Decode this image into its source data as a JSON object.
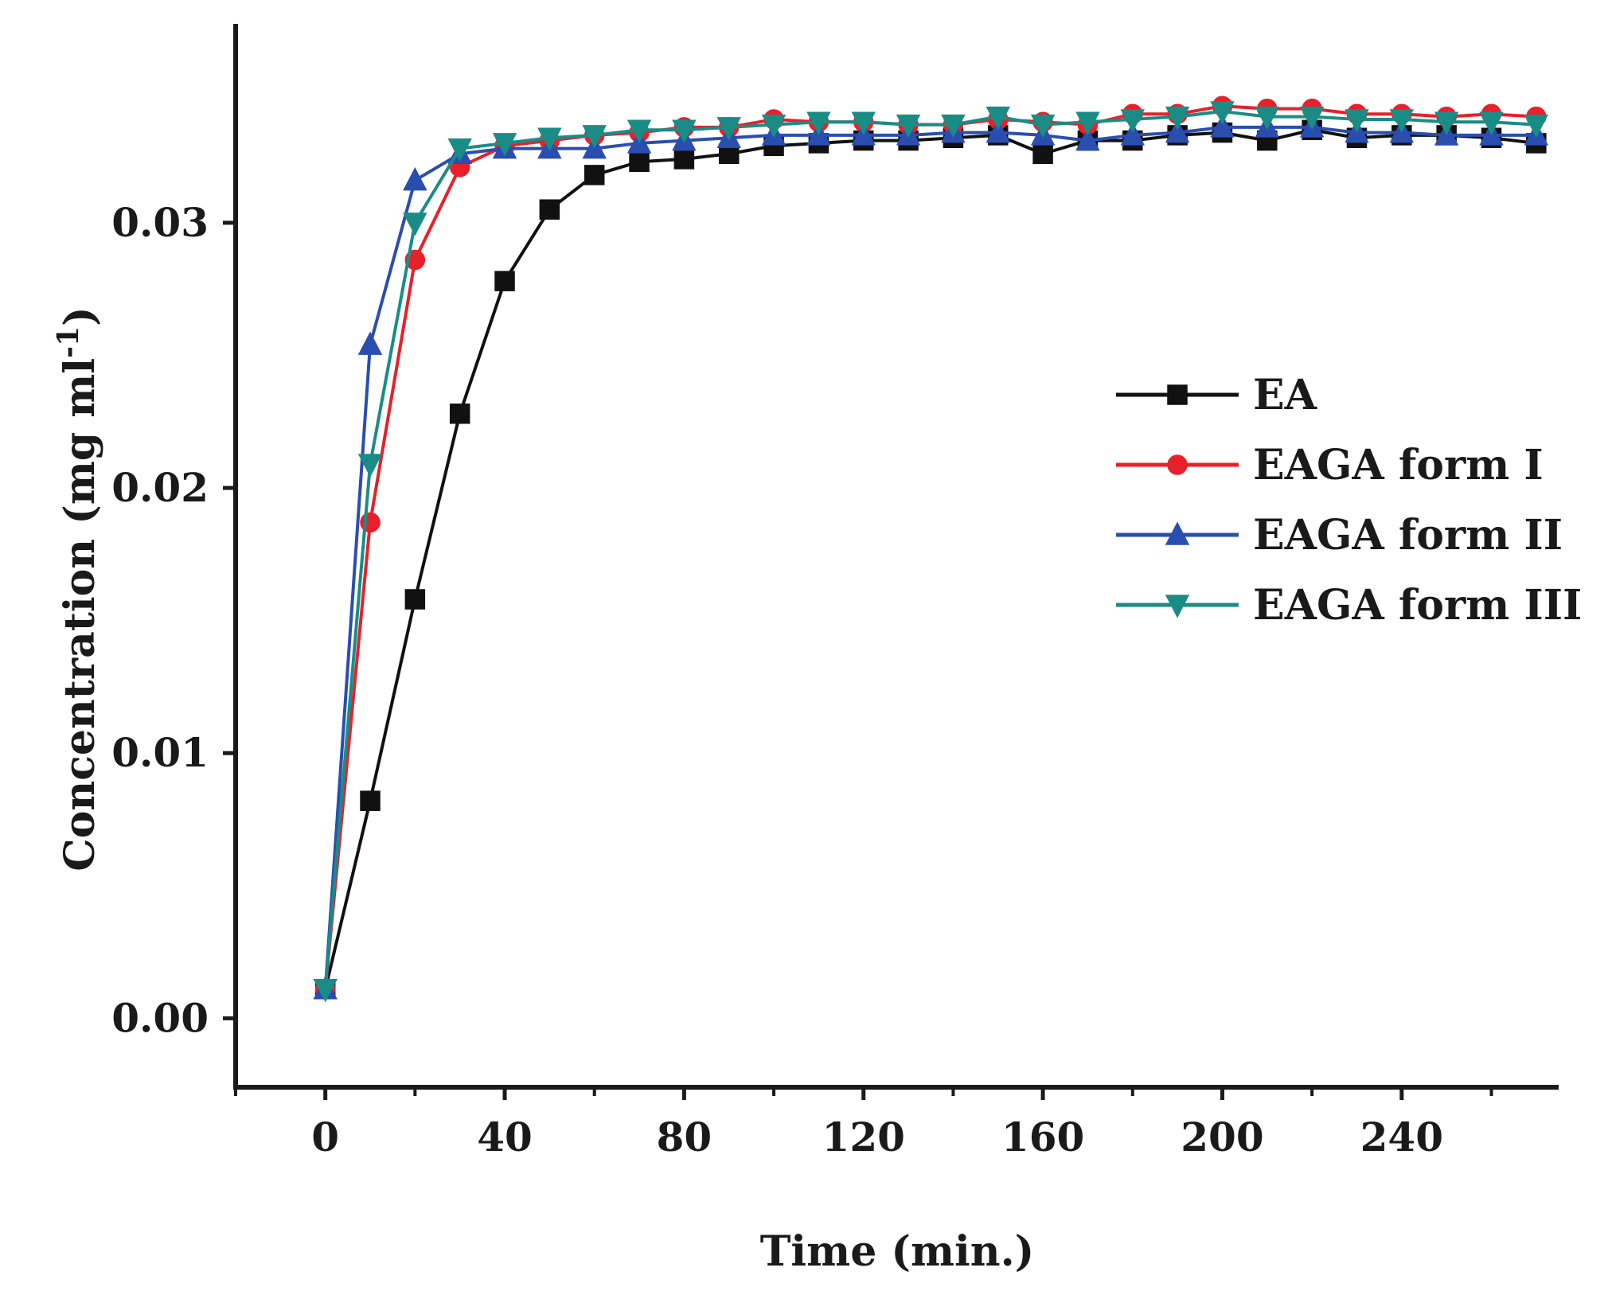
{
  "chart_data": {
    "type": "line",
    "title": "",
    "xlabel": "Time (min.)",
    "ylabel": "Concentration (mg ml",
    "ylabel_superscript": "-1",
    "ylabel_close": ")",
    "xlim": [
      -20,
      275
    ],
    "ylim": [
      -0.0026,
      0.0375
    ],
    "xticks": [
      0,
      40,
      80,
      120,
      160,
      200,
      240
    ],
    "xtick_labels": [
      "0",
      "40",
      "80",
      "120",
      "160",
      "200",
      "240"
    ],
    "yticks": [
      0.0,
      0.01,
      0.02,
      0.03
    ],
    "ytick_labels": [
      "0.00",
      "0.01",
      "0.02",
      "0.03"
    ],
    "legend_position": "center-right",
    "x": [
      0,
      10,
      20,
      30,
      40,
      50,
      60,
      70,
      80,
      90,
      100,
      110,
      120,
      130,
      140,
      150,
      160,
      170,
      180,
      190,
      200,
      210,
      220,
      230,
      240,
      250,
      260,
      270
    ],
    "series": [
      {
        "name": "EA",
        "color": "#111111",
        "marker": "square",
        "values": [
          0.0011,
          0.0082,
          0.0158,
          0.0228,
          0.0278,
          0.0305,
          0.0318,
          0.0323,
          0.0324,
          0.0326,
          0.0329,
          0.033,
          0.0331,
          0.0331,
          0.0332,
          0.0333,
          0.0326,
          0.0331,
          0.0331,
          0.0333,
          0.0334,
          0.0331,
          0.0335,
          0.0332,
          0.0333,
          0.0333,
          0.0332,
          0.033
        ]
      },
      {
        "name": "EAGA form I",
        "color": "#e8202a",
        "marker": "circle",
        "values": [
          0.0011,
          0.0187,
          0.0286,
          0.0321,
          0.0329,
          0.0331,
          0.0333,
          0.0334,
          0.0336,
          0.0336,
          0.0339,
          0.0338,
          0.0338,
          0.0337,
          0.0337,
          0.0339,
          0.0338,
          0.0337,
          0.0341,
          0.0341,
          0.0344,
          0.0343,
          0.0343,
          0.0341,
          0.0341,
          0.034,
          0.0341,
          0.034
        ]
      },
      {
        "name": "EAGA form II",
        "color": "#2a4eb0",
        "marker": "triangle-up",
        "values": [
          0.0011,
          0.0254,
          0.0316,
          0.0326,
          0.0328,
          0.0328,
          0.0328,
          0.033,
          0.0331,
          0.0332,
          0.0333,
          0.0333,
          0.0333,
          0.0333,
          0.0334,
          0.0334,
          0.0333,
          0.0331,
          0.0333,
          0.0334,
          0.0336,
          0.0336,
          0.0336,
          0.0334,
          0.0334,
          0.0333,
          0.0333,
          0.0333
        ]
      },
      {
        "name": "EAGA form III",
        "color": "#1a8c86",
        "marker": "triangle-down",
        "values": [
          0.0011,
          0.0209,
          0.03,
          0.0328,
          0.033,
          0.0332,
          0.0333,
          0.0335,
          0.0335,
          0.0336,
          0.0337,
          0.0338,
          0.0338,
          0.0337,
          0.0337,
          0.034,
          0.0337,
          0.0338,
          0.0339,
          0.034,
          0.0342,
          0.034,
          0.034,
          0.0339,
          0.0339,
          0.0338,
          0.0338,
          0.0337
        ]
      }
    ]
  }
}
